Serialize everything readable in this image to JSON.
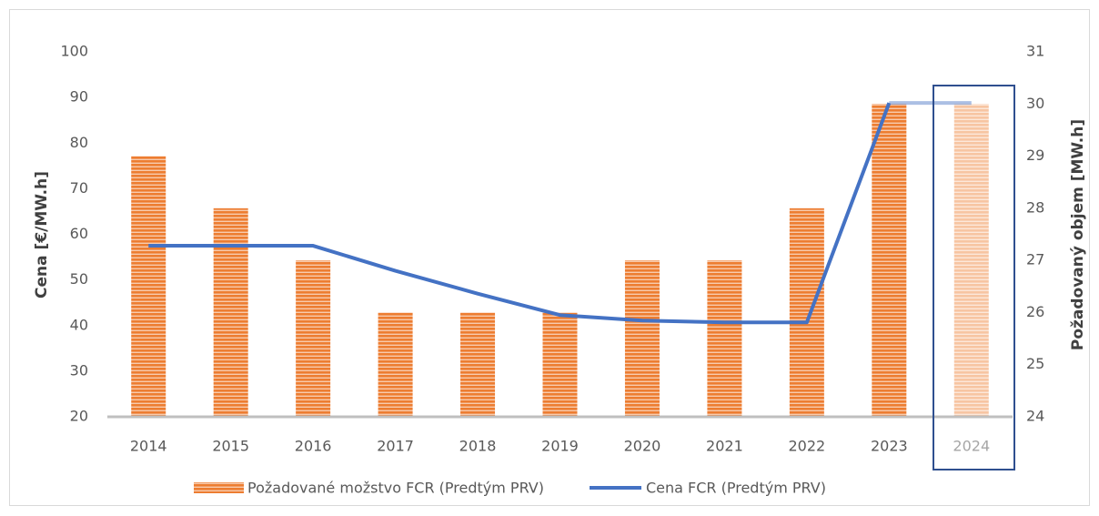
{
  "chart_data": {
    "type": "bar_line",
    "categories": [
      "2014",
      "2015",
      "2016",
      "2017",
      "2018",
      "2019",
      "2020",
      "2021",
      "2022",
      "2023",
      "2024"
    ],
    "series": [
      {
        "name": "Požadované možstvo FCR (Predtým PRV)",
        "type": "bar",
        "color": "#ED7D31",
        "axis": "y2",
        "values": [
          29,
          28,
          27,
          26,
          26,
          26,
          27,
          27,
          28,
          30,
          30
        ]
      },
      {
        "name": "Cena FCR (Predtým PRV)",
        "type": "line",
        "color": "#4472C4",
        "axis": "y",
        "values": [
          57.5,
          57.5,
          57.5,
          52,
          47,
          42.3,
          41.1,
          40.7,
          40.7,
          88.8,
          88.8
        ]
      }
    ],
    "ylabel": "Cena [€/MW.h]",
    "y2label": "Požadovaný objem [MW.h]",
    "ylim": [
      20,
      100
    ],
    "yticks": [
      20,
      30,
      40,
      50,
      60,
      70,
      80,
      90,
      100
    ],
    "y2lim": [
      24,
      31
    ],
    "y2ticks": [
      24,
      25,
      26,
      27,
      28,
      29,
      30,
      31
    ],
    "legend": "bottom"
  }
}
